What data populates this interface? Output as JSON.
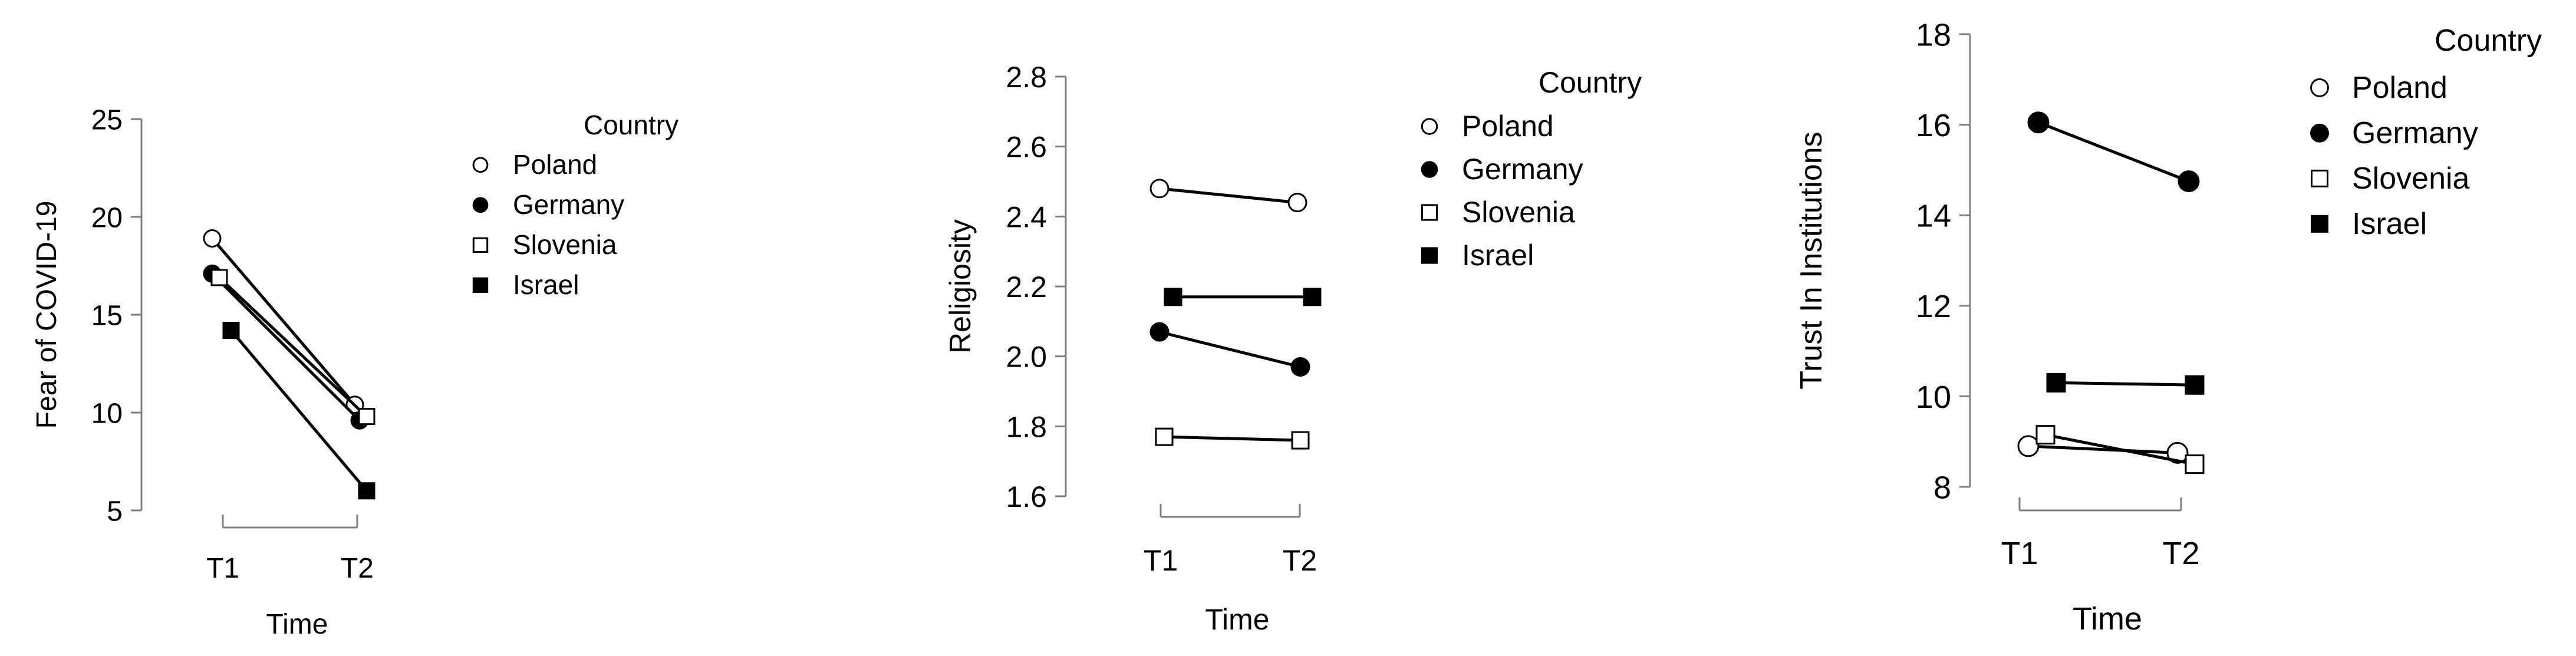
{
  "chart_data": [
    {
      "type": "line",
      "title": "",
      "xlabel": "Time",
      "ylabel": "Fear of COVID-19",
      "categories": [
        "T1",
        "T2"
      ],
      "ylim": [
        5,
        25
      ],
      "yticks": [
        "5",
        "10",
        "15",
        "20",
        "25"
      ],
      "legend_title": "Country",
      "legend_placement": "right",
      "grid": false,
      "series": [
        {
          "name": "Poland",
          "marker": "circle-open",
          "values": [
            18.9,
            10.4
          ]
        },
        {
          "name": "Germany",
          "marker": "circle-filled",
          "values": [
            17.1,
            9.6
          ]
        },
        {
          "name": "Slovenia",
          "marker": "square-open",
          "values": [
            16.9,
            9.8
          ]
        },
        {
          "name": "Israel",
          "marker": "square-filled",
          "values": [
            14.2,
            6.0
          ]
        }
      ]
    },
    {
      "type": "line",
      "title": "",
      "xlabel": "Time",
      "ylabel": "Religiosity",
      "categories": [
        "T1",
        "T2"
      ],
      "ylim": [
        1.6,
        2.8
      ],
      "yticks": [
        "1.6",
        "1.8",
        "2.0",
        "2.2",
        "2.4",
        "2.6",
        "2.8"
      ],
      "legend_title": "Country",
      "legend_placement": "right",
      "grid": false,
      "series": [
        {
          "name": "Poland",
          "marker": "circle-open",
          "values": [
            2.48,
            2.44
          ]
        },
        {
          "name": "Germany",
          "marker": "circle-filled",
          "values": [
            2.07,
            1.97
          ]
        },
        {
          "name": "Slovenia",
          "marker": "square-open",
          "values": [
            1.77,
            1.76
          ]
        },
        {
          "name": "Israel",
          "marker": "square-filled",
          "values": [
            2.17,
            2.17
          ]
        }
      ]
    },
    {
      "type": "line",
      "title": "",
      "xlabel": "Time",
      "ylabel": "Trust In Institutions",
      "categories": [
        "T1",
        "T2"
      ],
      "ylim": [
        8,
        18
      ],
      "yticks": [
        "8",
        "10",
        "12",
        "14",
        "16",
        "18"
      ],
      "legend_title": "Country",
      "legend_placement": "right",
      "grid": false,
      "series": [
        {
          "name": "Poland",
          "marker": "circle-open",
          "values": [
            8.9,
            8.75
          ]
        },
        {
          "name": "Germany",
          "marker": "circle-filled",
          "values": [
            16.05,
            14.75
          ]
        },
        {
          "name": "Slovenia",
          "marker": "square-open",
          "values": [
            9.15,
            8.5
          ]
        },
        {
          "name": "Israel",
          "marker": "square-filled",
          "values": [
            10.3,
            10.25
          ]
        }
      ]
    }
  ]
}
